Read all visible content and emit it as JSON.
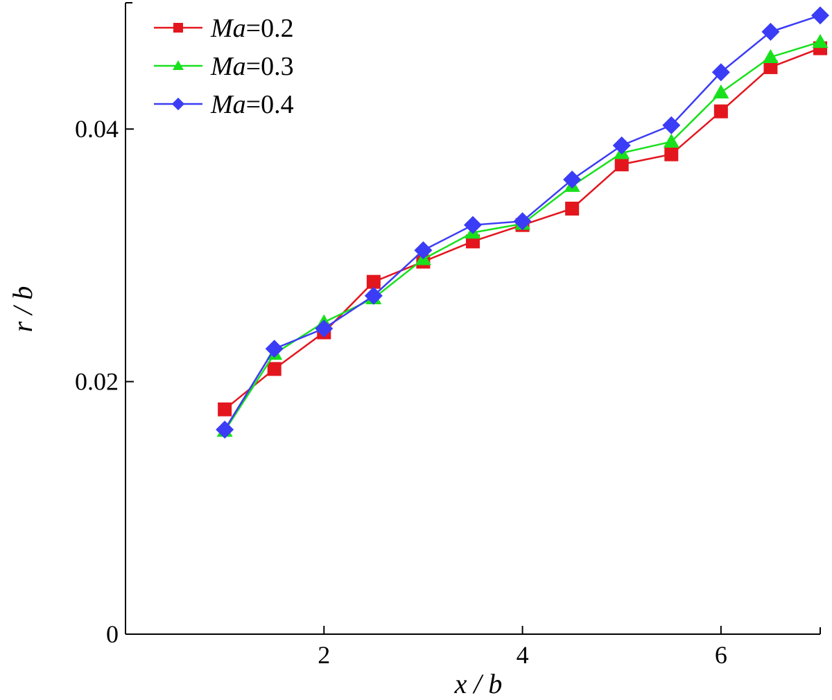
{
  "chart_data": {
    "type": "line",
    "xlabel": "x / b",
    "ylabel": "r / b",
    "xlim": [
      0,
      7
    ],
    "ylim": [
      0,
      0.05
    ],
    "x_ticks": [
      2,
      4,
      6
    ],
    "x_tick_labels": [
      "2",
      "4",
      "6"
    ],
    "y_ticks": [
      0,
      0.02,
      0.04
    ],
    "y_tick_labels": [
      "0",
      "0.02",
      "0.04"
    ],
    "legend_position": "top-left",
    "x": [
      1,
      1.5,
      2,
      2.5,
      3,
      3.5,
      4,
      4.5,
      5,
      5.5,
      6,
      6.5,
      7
    ],
    "series": [
      {
        "name": "Ma=0.2",
        "name_italic": "Ma",
        "name_rest": "=0.2",
        "color": "#e3161e",
        "marker": "square",
        "values": [
          0.0178,
          0.021,
          0.0239,
          0.0279,
          0.0295,
          0.0311,
          0.0324,
          0.0337,
          0.0372,
          0.038,
          0.0414,
          0.0449,
          0.0464
        ]
      },
      {
        "name": "Ma=0.3",
        "name_italic": "Ma",
        "name_rest": "=0.3",
        "color": "#19e01c",
        "marker": "triangle",
        "values": [
          0.0161,
          0.0222,
          0.0247,
          0.0266,
          0.0297,
          0.0318,
          0.0325,
          0.0355,
          0.0381,
          0.039,
          0.0429,
          0.0457,
          0.0469
        ]
      },
      {
        "name": "Ma=0.4",
        "name_italic": "Ma",
        "name_rest": "=0.4",
        "color": "#3b3cf5",
        "marker": "diamond",
        "values": [
          0.0162,
          0.0226,
          0.0242,
          0.0268,
          0.0304,
          0.0324,
          0.0327,
          0.036,
          0.0387,
          0.0403,
          0.0445,
          0.0477,
          0.049
        ]
      }
    ]
  }
}
